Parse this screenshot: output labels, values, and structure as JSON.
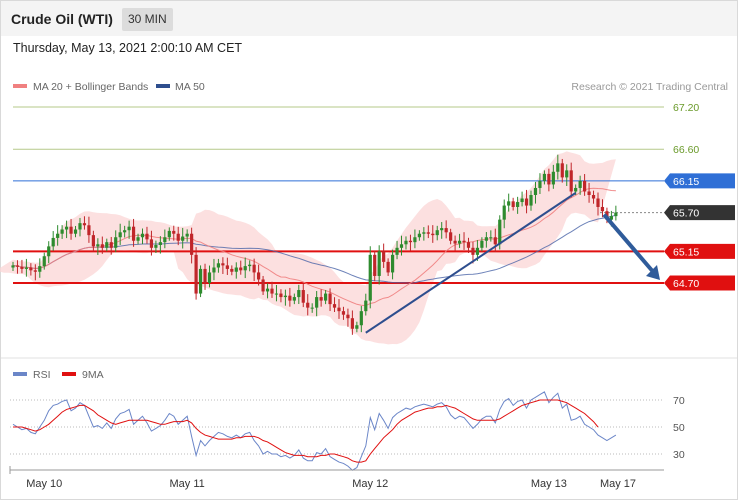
{
  "header": {
    "title": "Crude Oil (WTI)",
    "interval": "30 MIN",
    "datetime": "Thursday, May 13, 2021 2:00:10 AM CET"
  },
  "legend": {
    "ma20_bb": "MA 20 + Bollinger Bands",
    "ma50": "MA 50",
    "copyright": "Research © 2021 Trading Central",
    "rsi": "RSI",
    "ma9": "9MA"
  },
  "colors": {
    "bollinger_fill": "#fbd5d5",
    "ma20": "#f08080",
    "ma50": "#4a64a8",
    "candle_up": "#2e8b2e",
    "candle_down": "#c0262a",
    "resistance_green": "#b6c98a",
    "level_blue": "#2f6fd6",
    "level_red": "#e01010",
    "current": "#333333",
    "trend": "#2e4e8e",
    "arrow": "#2f5b9a",
    "rsi": "#6b86c8",
    "rsi_ma": "#e01010"
  },
  "chart_data": {
    "type": "candlestick",
    "instrument": "Crude Oil (WTI)",
    "timeframe": "30 MIN",
    "y_ticks": [
      67.2,
      66.6,
      66.15,
      65.7,
      65.15,
      64.7
    ],
    "levels": [
      {
        "label": "67.20",
        "value": 67.2,
        "kind": "resistance"
      },
      {
        "label": "66.60",
        "value": 66.6,
        "kind": "resistance"
      },
      {
        "label": "66.15",
        "value": 66.15,
        "kind": "pivot"
      },
      {
        "label": "65.70",
        "value": 65.7,
        "kind": "current"
      },
      {
        "label": "65.15",
        "value": 65.15,
        "kind": "support"
      },
      {
        "label": "64.70",
        "value": 64.7,
        "kind": "support"
      }
    ],
    "x_labels": [
      "May 10",
      "May 11",
      "May 12",
      "May 13",
      "May 17"
    ],
    "x_label_bars": [
      8,
      40,
      81,
      121,
      132
    ],
    "bar_count": 132,
    "closes": [
      64.95,
      64.93,
      64.9,
      64.92,
      64.88,
      64.86,
      64.94,
      65.08,
      65.22,
      65.34,
      65.4,
      65.46,
      65.5,
      65.4,
      65.46,
      65.55,
      65.52,
      65.38,
      65.22,
      65.25,
      65.2,
      65.28,
      65.2,
      65.35,
      65.42,
      65.45,
      65.5,
      65.3,
      65.35,
      65.4,
      65.32,
      65.2,
      65.24,
      65.28,
      65.35,
      65.44,
      65.4,
      65.3,
      65.36,
      65.4,
      65.1,
      64.55,
      64.9,
      64.7,
      64.85,
      64.92,
      64.98,
      64.95,
      64.9,
      64.86,
      64.92,
      64.88,
      64.94,
      64.96,
      64.85,
      64.75,
      64.58,
      64.62,
      64.55,
      64.55,
      64.5,
      64.52,
      64.45,
      64.5,
      64.6,
      64.42,
      64.35,
      64.35,
      64.5,
      64.45,
      64.55,
      64.4,
      64.35,
      64.3,
      64.25,
      64.2,
      64.05,
      64.1,
      64.3,
      64.45,
      65.1,
      64.8,
      65.15,
      65.0,
      64.85,
      65.1,
      65.2,
      65.25,
      65.3,
      65.28,
      65.35,
      65.4,
      65.42,
      65.4,
      65.38,
      65.45,
      65.48,
      65.42,
      65.3,
      65.26,
      65.3,
      65.28,
      65.2,
      65.1,
      65.2,
      65.3,
      65.35,
      65.35,
      65.25,
      65.6,
      65.8,
      65.86,
      65.78,
      65.85,
      65.9,
      65.8,
      65.95,
      66.05,
      66.15,
      66.25,
      66.1,
      66.28,
      66.4,
      66.2,
      66.3,
      66.0,
      66.05,
      66.15,
      66.0,
      65.95,
      65.9,
      65.78,
      65.72,
      65.6,
      65.65,
      65.7
    ],
    "ma20_values_approx": "smoothed, follows price",
    "ma50_values_approx": "smoothed, slower",
    "rsi_ticks": [
      70,
      50,
      30
    ],
    "rsi_values": [
      52,
      50,
      48,
      49,
      46,
      45,
      50,
      55,
      62,
      66,
      67,
      69,
      70,
      62,
      64,
      68,
      66,
      58,
      50,
      51,
      49,
      53,
      49,
      56,
      60,
      61,
      63,
      52,
      55,
      58,
      53,
      47,
      49,
      51,
      55,
      60,
      58,
      52,
      55,
      58,
      43,
      29,
      40,
      36,
      40,
      43,
      46,
      45,
      43,
      42,
      44,
      42,
      45,
      46,
      40,
      36,
      30,
      32,
      30,
      30,
      28,
      29,
      27,
      29,
      33,
      27,
      25,
      25,
      31,
      30,
      34,
      28,
      26,
      24,
      23,
      21,
      18,
      20,
      28,
      36,
      57,
      48,
      60,
      55,
      49,
      57,
      60,
      62,
      64,
      63,
      65,
      66,
      67,
      66,
      65,
      67,
      68,
      65,
      59,
      56,
      58,
      57,
      53,
      49,
      52,
      56,
      58,
      58,
      53,
      63,
      69,
      71,
      66,
      69,
      70,
      64,
      70,
      72,
      74,
      76,
      68,
      72,
      75,
      64,
      67,
      55,
      56,
      58,
      52,
      50,
      48,
      44,
      42,
      40,
      42,
      44
    ],
    "rsi_ma_values": [
      50,
      50,
      50,
      49,
      48,
      47,
      48,
      50,
      52,
      55,
      58,
      61,
      63,
      64,
      65,
      66,
      66,
      64,
      62,
      59,
      57,
      55,
      53,
      52,
      53,
      54,
      55,
      55,
      55,
      55,
      55,
      54,
      53,
      52,
      52,
      53,
      54,
      54,
      54,
      55,
      53,
      49,
      46,
      44,
      43,
      42,
      41,
      41,
      41,
      41,
      42,
      42,
      43,
      43,
      43,
      42,
      40,
      39,
      37,
      35,
      33,
      31,
      30,
      29,
      29,
      29,
      28,
      28,
      28,
      29,
      29,
      30,
      30,
      29,
      28,
      27,
      25,
      24,
      24,
      25,
      30,
      34,
      38,
      42,
      45,
      48,
      52,
      55,
      57,
      59,
      61,
      62,
      63,
      64,
      64,
      65,
      65,
      66,
      65,
      64,
      62,
      60,
      58,
      56,
      55,
      55,
      55,
      55,
      55,
      56,
      58,
      60,
      62,
      64,
      66,
      67,
      68,
      69,
      70,
      70,
      70,
      70,
      70,
      69,
      68,
      66,
      64,
      62,
      60,
      57,
      54,
      50
    ],
    "trendline": {
      "from_bar": 80,
      "from_value": 64.05,
      "to_bar": 127,
      "to_value": 65.98
    },
    "projection": {
      "from_bar": 132,
      "from_value": 65.7,
      "to_value": 64.7
    }
  }
}
